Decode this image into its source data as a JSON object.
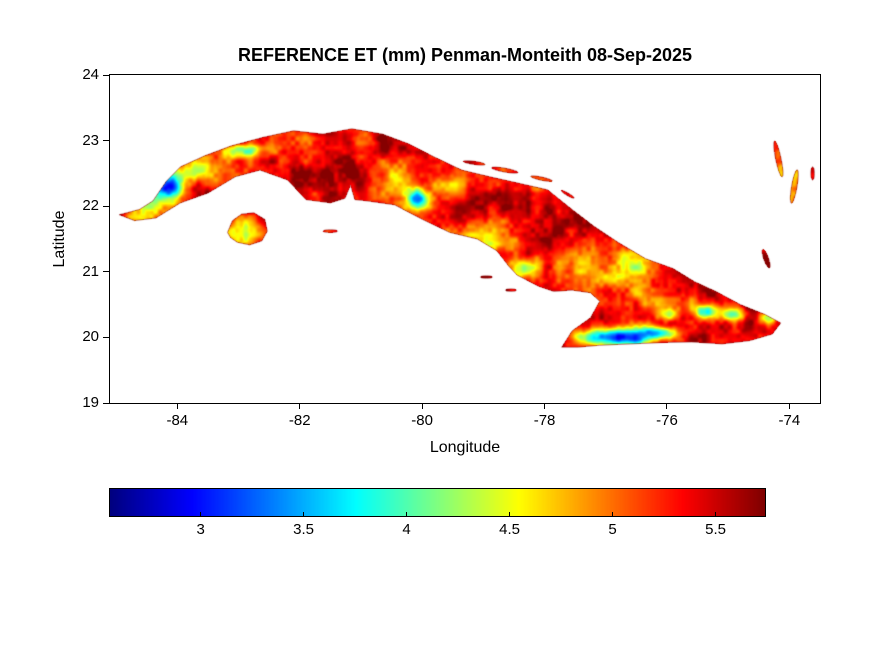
{
  "chart_data": {
    "type": "heatmap",
    "title": "REFERENCE ET (mm) Penman-Monteith 08-Sep-2025",
    "xlabel": "Longitude",
    "ylabel": "Latitude",
    "xlim": [
      -85.1,
      -73.5
    ],
    "ylim": [
      19,
      24
    ],
    "x_ticks": [
      -84,
      -82,
      -80,
      -78,
      -76,
      -74
    ],
    "y_ticks": [
      19,
      20,
      21,
      22,
      23,
      24
    ],
    "grid": false,
    "value_units": "mm",
    "colorbar": {
      "orientation": "horizontal",
      "colormap": "jet",
      "range": [
        2.56,
        5.74
      ],
      "ticks": [
        3,
        3.5,
        4,
        4.5,
        5,
        5.5
      ]
    },
    "field": {
      "base_value": 5.42,
      "clamp": [
        2.62,
        5.72
      ],
      "noise_octaves": [
        {
          "cell": 0.5,
          "amp": 0.38,
          "seed": 11
        },
        {
          "cell": 0.18,
          "amp": 0.28,
          "seed": 23
        },
        {
          "cell": 0.07,
          "amp": 0.16,
          "seed": 37
        }
      ],
      "patches": [
        [
          -84.15,
          22.3,
          0.25,
          0.2,
          -2.3
        ],
        [
          -84.5,
          22.0,
          0.3,
          0.22,
          -1.0
        ],
        [
          -83.7,
          22.55,
          0.28,
          0.18,
          -0.85
        ],
        [
          -83.1,
          22.85,
          0.22,
          0.12,
          -1.1
        ],
        [
          -82.8,
          22.85,
          0.18,
          0.1,
          -1.0
        ],
        [
          -82.95,
          21.62,
          0.3,
          0.24,
          -1.25
        ],
        [
          -80.05,
          22.1,
          0.2,
          0.15,
          -1.7
        ],
        [
          -80.4,
          22.3,
          0.32,
          0.2,
          -0.75
        ],
        [
          -79.5,
          22.3,
          0.3,
          0.16,
          -0.6
        ],
        [
          -79.0,
          21.55,
          0.45,
          0.28,
          -0.55
        ],
        [
          -78.35,
          21.05,
          0.24,
          0.16,
          -1.1
        ],
        [
          -77.4,
          21.0,
          0.55,
          0.33,
          -0.85
        ],
        [
          -76.6,
          21.05,
          0.45,
          0.28,
          -0.9
        ],
        [
          -76.0,
          20.6,
          0.38,
          0.22,
          -0.7
        ],
        [
          -76.85,
          20.0,
          0.6,
          0.13,
          -2.6
        ],
        [
          -76.1,
          20.08,
          0.3,
          0.1,
          -1.7
        ],
        [
          -76.0,
          20.35,
          0.2,
          0.12,
          -1.2
        ],
        [
          -75.35,
          20.4,
          0.22,
          0.12,
          -1.5
        ],
        [
          -74.9,
          20.35,
          0.18,
          0.1,
          -1.4
        ],
        [
          -74.35,
          20.3,
          0.15,
          0.1,
          -1.2
        ],
        [
          -74.0,
          22.5,
          0.3,
          0.4,
          -0.6
        ]
      ]
    },
    "regions": {
      "cuba": [
        [
          -84.95,
          21.87
        ],
        [
          -84.62,
          21.95
        ],
        [
          -84.4,
          22.08
        ],
        [
          -84.18,
          22.38
        ],
        [
          -83.95,
          22.6
        ],
        [
          -83.55,
          22.77
        ],
        [
          -83.12,
          22.92
        ],
        [
          -82.6,
          23.05
        ],
        [
          -82.1,
          23.15
        ],
        [
          -81.62,
          23.1
        ],
        [
          -81.15,
          23.18
        ],
        [
          -80.65,
          23.1
        ],
        [
          -80.22,
          22.95
        ],
        [
          -79.8,
          22.75
        ],
        [
          -79.35,
          22.55
        ],
        [
          -78.9,
          22.45
        ],
        [
          -78.42,
          22.35
        ],
        [
          -77.95,
          22.25
        ],
        [
          -77.55,
          21.95
        ],
        [
          -77.2,
          21.7
        ],
        [
          -76.8,
          21.45
        ],
        [
          -76.35,
          21.2
        ],
        [
          -75.9,
          21.05
        ],
        [
          -75.55,
          20.85
        ],
        [
          -75.2,
          20.7
        ],
        [
          -74.8,
          20.5
        ],
        [
          -74.4,
          20.35
        ],
        [
          -74.14,
          20.22
        ],
        [
          -74.28,
          20.05
        ],
        [
          -74.65,
          19.95
        ],
        [
          -75.1,
          19.9
        ],
        [
          -75.6,
          19.93
        ],
        [
          -76.1,
          19.92
        ],
        [
          -76.6,
          19.9
        ],
        [
          -77.1,
          19.88
        ],
        [
          -77.45,
          19.85
        ],
        [
          -77.72,
          19.85
        ],
        [
          -77.55,
          20.1
        ],
        [
          -77.25,
          20.3
        ],
        [
          -77.1,
          20.55
        ],
        [
          -77.25,
          20.68
        ],
        [
          -77.55,
          20.72
        ],
        [
          -77.85,
          20.7
        ],
        [
          -78.1,
          20.78
        ],
        [
          -78.45,
          20.95
        ],
        [
          -78.58,
          21.08
        ],
        [
          -78.78,
          21.32
        ],
        [
          -79.1,
          21.5
        ],
        [
          -79.55,
          21.6
        ],
        [
          -80.0,
          21.8
        ],
        [
          -80.45,
          22.02
        ],
        [
          -80.9,
          22.08
        ],
        [
          -81.1,
          22.1
        ],
        [
          -81.17,
          22.32
        ],
        [
          -81.26,
          22.12
        ],
        [
          -81.5,
          22.05
        ],
        [
          -81.9,
          22.1
        ],
        [
          -82.2,
          22.4
        ],
        [
          -82.65,
          22.55
        ],
        [
          -83.05,
          22.45
        ],
        [
          -83.5,
          22.2
        ],
        [
          -83.95,
          22.05
        ],
        [
          -84.35,
          21.82
        ],
        [
          -84.7,
          21.78
        ]
      ],
      "isla_de_la_juventud": [
        [
          -83.18,
          21.6
        ],
        [
          -83.1,
          21.78
        ],
        [
          -82.95,
          21.88
        ],
        [
          -82.75,
          21.9
        ],
        [
          -82.57,
          21.8
        ],
        [
          -82.53,
          21.62
        ],
        [
          -82.62,
          21.47
        ],
        [
          -82.82,
          21.41
        ],
        [
          -83.02,
          21.45
        ],
        [
          -83.13,
          21.52
        ]
      ],
      "islets": [
        [
          -79.15,
          22.66,
          0.18,
          0.025,
          -8
        ],
        [
          -78.65,
          22.55,
          0.22,
          0.03,
          -10
        ],
        [
          -78.05,
          22.42,
          0.18,
          0.025,
          -12
        ],
        [
          -77.62,
          22.18,
          0.12,
          0.02,
          -30
        ],
        [
          -78.95,
          20.92,
          0.1,
          0.02,
          0
        ],
        [
          -78.55,
          20.72,
          0.09,
          0.02,
          0
        ],
        [
          -81.5,
          21.62,
          0.12,
          0.022,
          0
        ],
        [
          -74.18,
          22.72,
          0.045,
          0.28,
          12
        ],
        [
          -73.92,
          22.3,
          0.045,
          0.26,
          -10
        ],
        [
          -73.62,
          22.5,
          0.03,
          0.1,
          0
        ],
        [
          -74.38,
          21.2,
          0.04,
          0.15,
          20
        ]
      ]
    },
    "coast_stroke": "rgba(139,0,0,0.55)"
  }
}
